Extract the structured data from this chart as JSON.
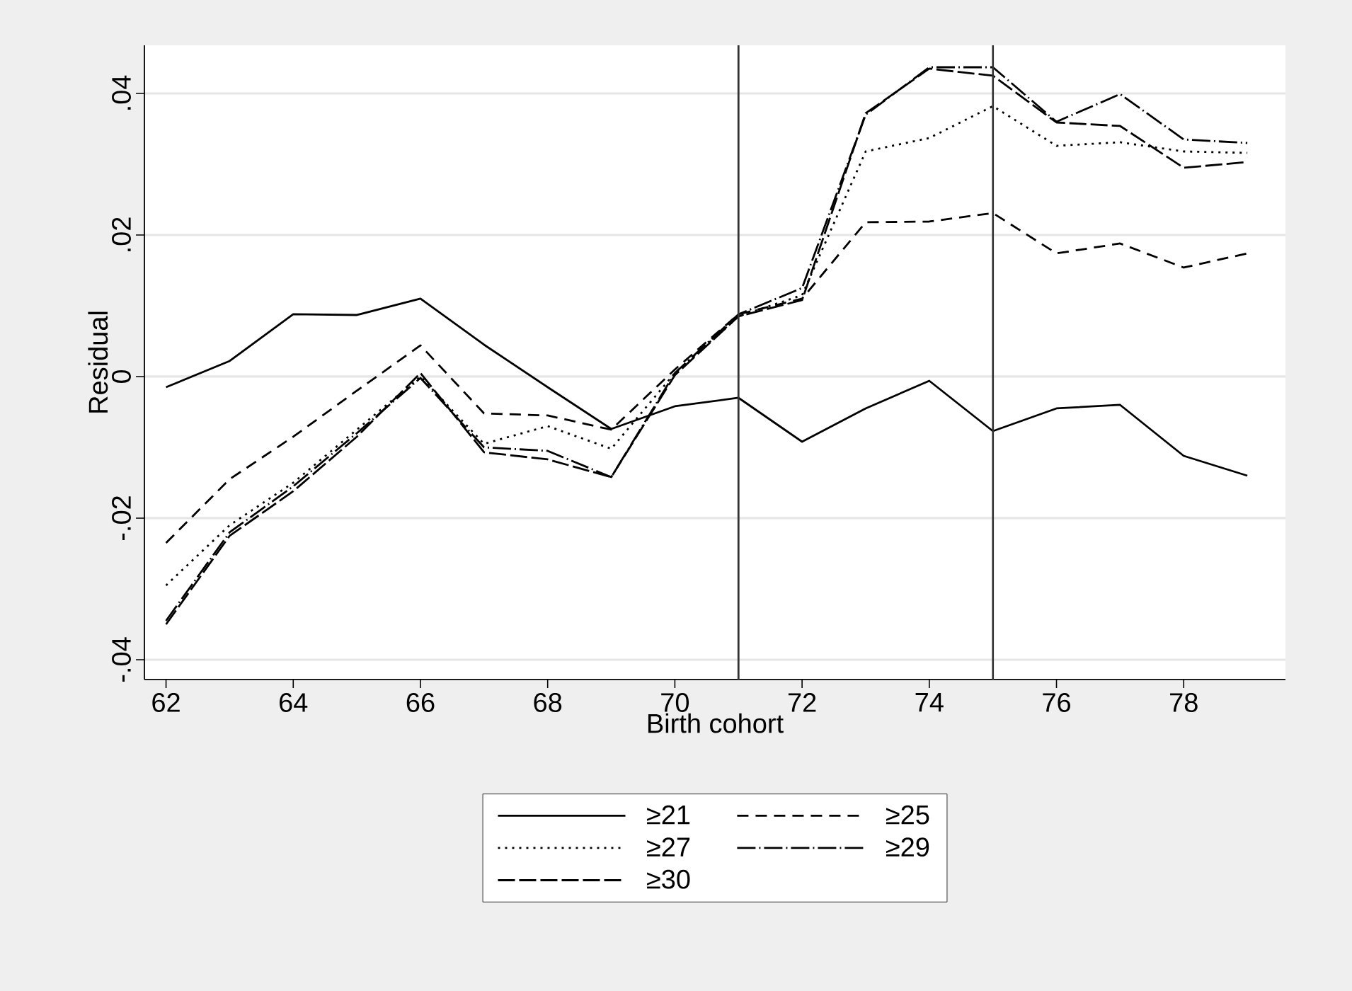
{
  "chart_data": {
    "type": "line",
    "xlabel": "Birth cohort",
    "ylabel": "Residual",
    "x": [
      62,
      63,
      64,
      65,
      66,
      67,
      68,
      69,
      70,
      71,
      72,
      73,
      74,
      75,
      76,
      77,
      78,
      79
    ],
    "series": [
      {
        "name": "≥21",
        "color": "#000000",
        "line_style": "solid",
        "values": [
          -0.0015,
          0.0022,
          0.0088,
          0.0087,
          0.011,
          0.0045,
          -0.0015,
          -0.0074,
          -0.0042,
          -0.003,
          -0.0092,
          -0.0045,
          -0.0006,
          -0.0077,
          -0.0045,
          -0.004,
          -0.0112,
          -0.014
        ]
      },
      {
        "name": "≥25",
        "color": "#000000",
        "line_style": "dashed",
        "values": [
          -0.0235,
          -0.0145,
          -0.0085,
          -0.002,
          0.0044,
          -0.0052,
          -0.0055,
          -0.0075,
          0.001,
          0.0088,
          0.011,
          0.0218,
          0.0219,
          0.0231,
          0.0174,
          0.0188,
          0.0154,
          0.0174
        ]
      },
      {
        "name": "≥27",
        "color": "#000000",
        "line_style": "dotted",
        "values": [
          -0.0295,
          -0.021,
          -0.015,
          -0.0075,
          0.0,
          -0.0095,
          -0.007,
          -0.0102,
          0.0005,
          0.0085,
          0.0115,
          0.0318,
          0.0337,
          0.0382,
          0.0326,
          0.0331,
          0.0318,
          0.0316
        ]
      },
      {
        "name": "≥29",
        "color": "#000000",
        "line_style": "dashdot",
        "values": [
          -0.0345,
          -0.022,
          -0.0155,
          -0.008,
          -0.0002,
          -0.01,
          -0.0105,
          -0.0142,
          0.0005,
          0.0088,
          0.0125,
          0.037,
          0.0437,
          0.0437,
          0.036,
          0.0399,
          0.0335,
          0.033
        ]
      },
      {
        "name": "≥30",
        "color": "#000000",
        "line_style": "longdash",
        "values": [
          -0.035,
          -0.0225,
          -0.0162,
          -0.0085,
          0.0005,
          -0.0107,
          -0.0117,
          -0.0142,
          0.0002,
          0.0085,
          0.0108,
          0.0372,
          0.0435,
          0.0425,
          0.0359,
          0.0354,
          0.0295,
          0.0303
        ]
      }
    ],
    "xlim": [
      61.66,
      79.6
    ],
    "ylim": [
      -0.0428,
      0.0468
    ],
    "xticks": [
      62,
      64,
      66,
      68,
      70,
      72,
      74,
      76,
      78
    ],
    "yticks": [
      {
        "value": -0.04,
        "label": "-.04"
      },
      {
        "value": -0.02,
        "label": "-.02"
      },
      {
        "value": 0,
        "label": "0"
      },
      {
        "value": 0.02,
        "label": ".02"
      },
      {
        "value": 0.04,
        "label": ".04"
      }
    ],
    "ref_lines": [
      {
        "axis": "x",
        "value": 71,
        "color": "#333333"
      },
      {
        "axis": "x",
        "value": 75,
        "color": "#333333"
      }
    ],
    "grid": "y",
    "legend": "bottom",
    "marker": "none"
  }
}
